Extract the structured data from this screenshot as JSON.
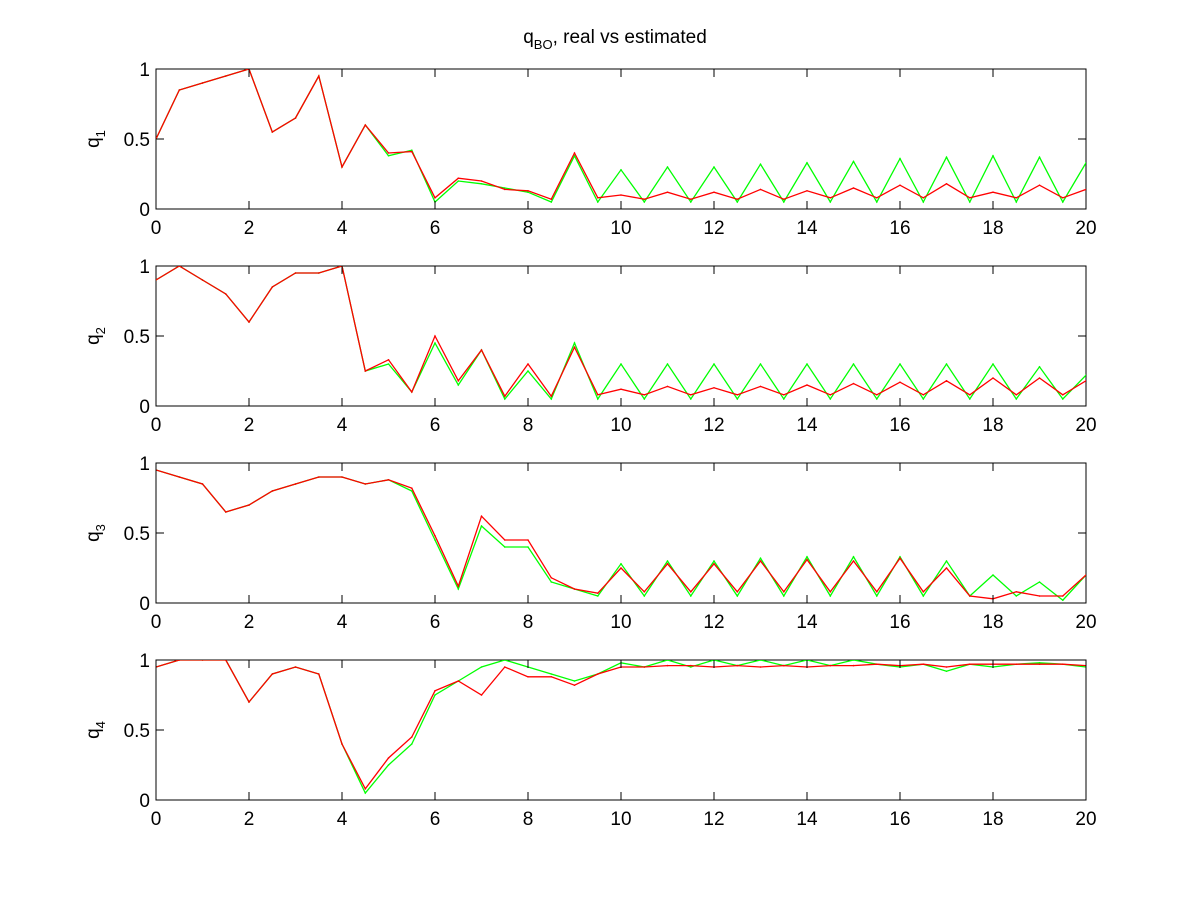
{
  "figure": {
    "title_main": "q",
    "title_sub": "BO",
    "title_rest": ", real vs estimated"
  },
  "colors": {
    "real": "#00ff00",
    "estimated": "#ff0000",
    "axes": "#000000",
    "background": "#ffffff"
  },
  "chart_data": [
    {
      "type": "line",
      "ylabel_main": "q",
      "ylabel_sub": "1",
      "xlim": [
        0,
        20
      ],
      "ylim": [
        0,
        1
      ],
      "xticks": [
        "0",
        "2",
        "4",
        "6",
        "8",
        "10",
        "12",
        "14",
        "16",
        "18",
        "20"
      ],
      "yticks": [
        "0",
        "0.5",
        "1"
      ],
      "x": [
        0.0,
        0.5,
        1.0,
        1.5,
        2.0,
        2.5,
        3.0,
        3.5,
        4.0,
        4.5,
        5.0,
        5.5,
        6.0,
        6.5,
        7.0,
        7.5,
        8.0,
        8.5,
        9.0,
        9.5,
        10.0,
        10.5,
        11.0,
        11.5,
        12.0,
        12.5,
        13.0,
        13.5,
        14.0,
        14.5,
        15.0,
        15.5,
        16.0,
        16.5,
        17.0,
        17.5,
        18.0,
        18.5,
        19.0,
        19.5,
        20.0
      ],
      "series": [
        {
          "color": "#00ff00",
          "values": [
            0.5,
            0.85,
            0.9,
            0.95,
            1.0,
            0.55,
            0.65,
            0.95,
            0.3,
            0.6,
            0.38,
            0.42,
            0.05,
            0.2,
            0.18,
            0.15,
            0.12,
            0.05,
            0.38,
            0.05,
            0.28,
            0.05,
            0.3,
            0.05,
            0.3,
            0.05,
            0.32,
            0.05,
            0.33,
            0.05,
            0.34,
            0.05,
            0.36,
            0.05,
            0.37,
            0.05,
            0.38,
            0.05,
            0.37,
            0.05,
            0.33
          ]
        },
        {
          "color": "#ff0000",
          "values": [
            0.5,
            0.85,
            0.9,
            0.95,
            1.0,
            0.55,
            0.65,
            0.95,
            0.3,
            0.6,
            0.4,
            0.41,
            0.08,
            0.22,
            0.2,
            0.14,
            0.13,
            0.07,
            0.4,
            0.08,
            0.1,
            0.07,
            0.12,
            0.07,
            0.12,
            0.07,
            0.14,
            0.07,
            0.13,
            0.08,
            0.15,
            0.08,
            0.17,
            0.08,
            0.18,
            0.08,
            0.12,
            0.08,
            0.17,
            0.08,
            0.14
          ]
        }
      ]
    },
    {
      "type": "line",
      "ylabel_main": "q",
      "ylabel_sub": "2",
      "xlim": [
        0,
        20
      ],
      "ylim": [
        0,
        1
      ],
      "xticks": [
        "0",
        "2",
        "4",
        "6",
        "8",
        "10",
        "12",
        "14",
        "16",
        "18",
        "20"
      ],
      "yticks": [
        "0",
        "0.5",
        "1"
      ],
      "x": [
        0.0,
        0.5,
        1.0,
        1.5,
        2.0,
        2.5,
        3.0,
        3.5,
        4.0,
        4.5,
        5.0,
        5.5,
        6.0,
        6.5,
        7.0,
        7.5,
        8.0,
        8.5,
        9.0,
        9.5,
        10.0,
        10.5,
        11.0,
        11.5,
        12.0,
        12.5,
        13.0,
        13.5,
        14.0,
        14.5,
        15.0,
        15.5,
        16.0,
        16.5,
        17.0,
        17.5,
        18.0,
        18.5,
        19.0,
        19.5,
        20.0
      ],
      "series": [
        {
          "color": "#00ff00",
          "values": [
            0.9,
            1.0,
            0.9,
            0.8,
            0.6,
            0.85,
            0.95,
            0.95,
            1.0,
            0.25,
            0.3,
            0.1,
            0.45,
            0.15,
            0.4,
            0.05,
            0.25,
            0.05,
            0.45,
            0.05,
            0.3,
            0.05,
            0.3,
            0.05,
            0.3,
            0.05,
            0.3,
            0.05,
            0.3,
            0.05,
            0.3,
            0.05,
            0.3,
            0.05,
            0.3,
            0.05,
            0.3,
            0.05,
            0.28,
            0.05,
            0.22
          ]
        },
        {
          "color": "#ff0000",
          "values": [
            0.9,
            1.0,
            0.9,
            0.8,
            0.6,
            0.85,
            0.95,
            0.95,
            1.0,
            0.25,
            0.33,
            0.1,
            0.5,
            0.18,
            0.4,
            0.07,
            0.3,
            0.07,
            0.42,
            0.08,
            0.12,
            0.08,
            0.14,
            0.08,
            0.13,
            0.08,
            0.14,
            0.08,
            0.15,
            0.08,
            0.16,
            0.08,
            0.17,
            0.08,
            0.18,
            0.08,
            0.2,
            0.08,
            0.2,
            0.08,
            0.18
          ]
        }
      ]
    },
    {
      "type": "line",
      "ylabel_main": "q",
      "ylabel_sub": "3",
      "xlim": [
        0,
        20
      ],
      "ylim": [
        0,
        1
      ],
      "xticks": [
        "0",
        "2",
        "4",
        "6",
        "8",
        "10",
        "12",
        "14",
        "16",
        "18",
        "20"
      ],
      "yticks": [
        "0",
        "0.5",
        "1"
      ],
      "x": [
        0.0,
        0.5,
        1.0,
        1.5,
        2.0,
        2.5,
        3.0,
        3.5,
        4.0,
        4.5,
        5.0,
        5.5,
        6.0,
        6.5,
        7.0,
        7.5,
        8.0,
        8.5,
        9.0,
        9.5,
        10.0,
        10.5,
        11.0,
        11.5,
        12.0,
        12.5,
        13.0,
        13.5,
        14.0,
        14.5,
        15.0,
        15.5,
        16.0,
        16.5,
        17.0,
        17.5,
        18.0,
        18.5,
        19.0,
        19.5,
        20.0
      ],
      "series": [
        {
          "color": "#00ff00",
          "values": [
            0.95,
            0.9,
            0.85,
            0.65,
            0.7,
            0.8,
            0.85,
            0.9,
            0.9,
            0.85,
            0.88,
            0.8,
            0.45,
            0.1,
            0.55,
            0.4,
            0.4,
            0.15,
            0.1,
            0.05,
            0.28,
            0.05,
            0.3,
            0.05,
            0.3,
            0.05,
            0.32,
            0.05,
            0.33,
            0.05,
            0.33,
            0.05,
            0.33,
            0.05,
            0.3,
            0.05,
            0.2,
            0.05,
            0.15,
            0.02,
            0.2
          ]
        },
        {
          "color": "#ff0000",
          "values": [
            0.95,
            0.9,
            0.85,
            0.65,
            0.7,
            0.8,
            0.85,
            0.9,
            0.9,
            0.85,
            0.88,
            0.82,
            0.48,
            0.12,
            0.62,
            0.45,
            0.45,
            0.18,
            0.1,
            0.07,
            0.25,
            0.08,
            0.28,
            0.08,
            0.28,
            0.08,
            0.3,
            0.08,
            0.31,
            0.08,
            0.3,
            0.08,
            0.32,
            0.08,
            0.25,
            0.05,
            0.03,
            0.08,
            0.05,
            0.05,
            0.2
          ]
        }
      ]
    },
    {
      "type": "line",
      "ylabel_main": "q",
      "ylabel_sub": "4",
      "xlim": [
        0,
        20
      ],
      "ylim": [
        0,
        1
      ],
      "xticks": [
        "0",
        "2",
        "4",
        "6",
        "8",
        "10",
        "12",
        "14",
        "16",
        "18",
        "20"
      ],
      "yticks": [
        "0",
        "0.5",
        "1"
      ],
      "x": [
        0.0,
        0.5,
        1.0,
        1.5,
        2.0,
        2.5,
        3.0,
        3.5,
        4.0,
        4.5,
        5.0,
        5.5,
        6.0,
        6.5,
        7.0,
        7.5,
        8.0,
        8.5,
        9.0,
        9.5,
        10.0,
        10.5,
        11.0,
        11.5,
        12.0,
        12.5,
        13.0,
        13.5,
        14.0,
        14.5,
        15.0,
        15.5,
        16.0,
        16.5,
        17.0,
        17.5,
        18.0,
        18.5,
        19.0,
        19.5,
        20.0
      ],
      "series": [
        {
          "color": "#00ff00",
          "values": [
            0.95,
            1.0,
            1.0,
            1.0,
            0.7,
            0.9,
            0.95,
            0.9,
            0.4,
            0.05,
            0.25,
            0.4,
            0.75,
            0.85,
            0.95,
            1.0,
            0.95,
            0.9,
            0.85,
            0.9,
            0.98,
            0.95,
            1.0,
            0.95,
            1.0,
            0.96,
            1.0,
            0.96,
            1.0,
            0.96,
            1.0,
            0.97,
            0.95,
            0.97,
            0.92,
            0.97,
            0.95,
            0.97,
            0.98,
            0.97,
            0.95
          ]
        },
        {
          "color": "#ff0000",
          "values": [
            0.95,
            1.0,
            1.0,
            1.0,
            0.7,
            0.9,
            0.95,
            0.9,
            0.4,
            0.08,
            0.3,
            0.45,
            0.78,
            0.85,
            0.75,
            0.95,
            0.88,
            0.88,
            0.82,
            0.9,
            0.95,
            0.95,
            0.96,
            0.96,
            0.95,
            0.96,
            0.95,
            0.96,
            0.95,
            0.96,
            0.96,
            0.97,
            0.96,
            0.97,
            0.95,
            0.97,
            0.97,
            0.97,
            0.97,
            0.97,
            0.96
          ]
        }
      ]
    }
  ]
}
